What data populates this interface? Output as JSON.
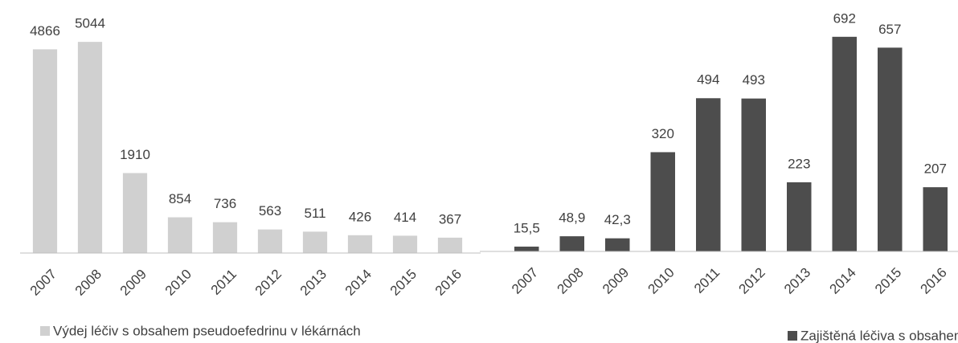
{
  "chart_data": [
    {
      "type": "bar",
      "categories": [
        "2007",
        "2008",
        "2009",
        "2010",
        "2011",
        "2012",
        "2013",
        "2014",
        "2015",
        "2016"
      ],
      "series": [
        {
          "name": "Výdej léčiv s obsahem pseudoefedrinu v lékárnách",
          "color": "#d0d0d0",
          "values": [
            4866,
            5044,
            1910,
            854,
            736,
            563,
            511,
            426,
            414,
            367
          ]
        }
      ],
      "ylim": [
        0,
        5200
      ],
      "legend": "bottom"
    },
    {
      "type": "bar",
      "categories": [
        "2007",
        "2008",
        "2009",
        "2010",
        "2011",
        "2012",
        "2013",
        "2014",
        "2015",
        "2016"
      ],
      "series": [
        {
          "name": "Zajištěná léčiva s obsahem pseudoefedrinu",
          "color": "#4d4d4d",
          "values": [
            15.5,
            48.9,
            42.3,
            320,
            494,
            493,
            223,
            692,
            657,
            207
          ],
          "value_labels": [
            "15,5",
            "48,9",
            "42,3",
            "320",
            "494",
            "493",
            "223",
            "692",
            "657",
            "207"
          ]
        }
      ],
      "ylim": [
        0,
        720
      ],
      "legend": "bottom"
    }
  ]
}
